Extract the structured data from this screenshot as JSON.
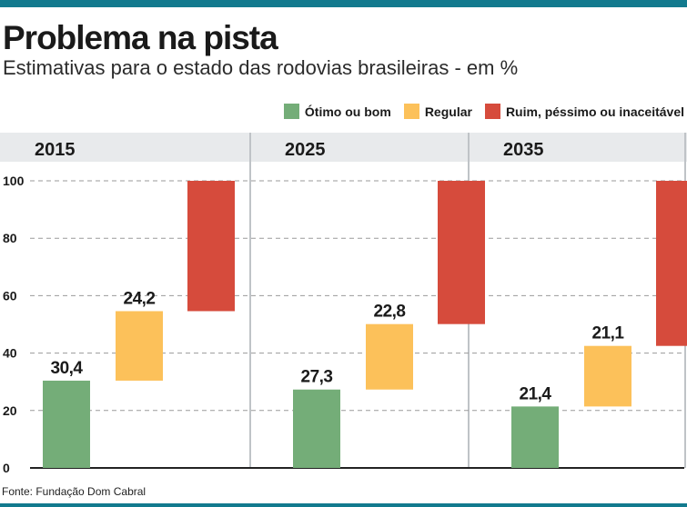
{
  "title": "Problema na pista",
  "subtitle": "Estimativas para o estado das rodovias brasileiras - em %",
  "source": "Fonte: Fundação Dom Cabral",
  "colors": {
    "good": "#74ad78",
    "regular": "#fcc15a",
    "bad": "#d64b3c",
    "band": "#e8eaec",
    "accent": "#127a8e"
  },
  "legend": [
    {
      "label": "Ótimo ou bom",
      "color": "#74ad78"
    },
    {
      "label": "Regular",
      "color": "#fcc15a"
    },
    {
      "label": "Ruim, péssimo ou inaceitável",
      "color": "#d64b3c"
    }
  ],
  "chart_data": {
    "type": "bar",
    "subtype": "stacked-waterfall",
    "ylim": [
      0,
      100
    ],
    "yticks": [
      0,
      20,
      40,
      60,
      80,
      100
    ],
    "grid": true,
    "legend_position": "top-right",
    "panels": [
      {
        "label": "2015",
        "values": [
          30.4,
          24.2,
          45.4
        ],
        "labels": [
          "30,4",
          "24,2",
          ""
        ]
      },
      {
        "label": "2025",
        "values": [
          27.3,
          22.8,
          49.9
        ],
        "labels": [
          "27,3",
          "22,8",
          ""
        ]
      },
      {
        "label": "2035",
        "values": [
          21.4,
          21.1,
          57.5
        ],
        "labels": [
          "21,4",
          "21,1",
          ""
        ]
      }
    ]
  }
}
